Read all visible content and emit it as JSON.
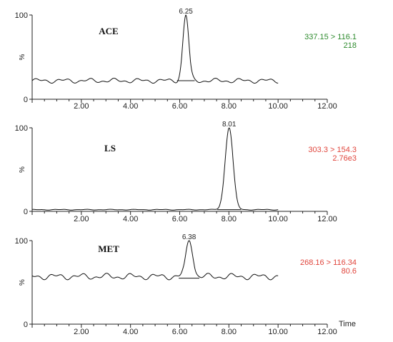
{
  "chart_data": {
    "type": "line",
    "x_label": "Time",
    "x_ticks": [
      "2.00",
      "4.00",
      "6.00",
      "8.00",
      "10.00",
      "12.00"
    ],
    "xlim": [
      0,
      12
    ],
    "y_axis_label": "%",
    "colors": {
      "green": "#2e8b2e",
      "red": "#e0453c"
    },
    "panels": [
      {
        "compound": "ACE",
        "peak_time": "6.25",
        "peak_x": 6.25,
        "transition": "337.15 > 116.1",
        "intensity": "218",
        "label_color": "green",
        "y_ticks": [
          "100",
          "0"
        ],
        "y_mid": "%",
        "baseline": 22,
        "noise": 3,
        "peak_width": 0.12,
        "trace_end": 10.0
      },
      {
        "compound": "LS",
        "peak_time": "8.01",
        "peak_x": 8.01,
        "transition": "303.3 > 154.3",
        "intensity": "2.76e3",
        "label_color": "red",
        "y_ticks": [
          "100",
          "0"
        ],
        "y_mid": "%",
        "baseline": 2,
        "noise": 0.5,
        "peak_width": 0.16,
        "trace_end": 10.0
      },
      {
        "compound": "MET",
        "peak_time": "6.38",
        "peak_x": 6.38,
        "transition": "268.16 > 116.34",
        "intensity": "80.6",
        "label_color": "red",
        "y_ticks": [
          "100",
          "0"
        ],
        "y_mid": "%",
        "baseline": 57,
        "noise": 4,
        "peak_width": 0.14,
        "trace_end": 10.0
      }
    ]
  }
}
